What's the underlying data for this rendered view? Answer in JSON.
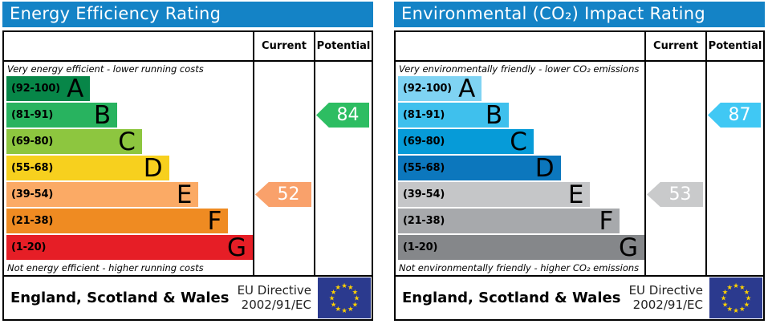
{
  "colors": {
    "header_bg": "#1483c6",
    "table_border": "#000000",
    "flag_blue": "#2b3a8e",
    "flag_star": "#ffd200",
    "arrow_text": "#ffffff"
  },
  "chart_data": [
    {
      "type": "bar",
      "title": "Energy Efficiency Rating",
      "column_headers": [
        "Current",
        "Potential"
      ],
      "top_note": "Very energy efficient - lower running costs",
      "bottom_note": "Not energy efficient - higher running costs",
      "categories": [
        "A",
        "B",
        "C",
        "D",
        "E",
        "F",
        "G"
      ],
      "bands": [
        {
          "grade": "A",
          "range_label": "(92-100)",
          "min": 92,
          "max": 100,
          "width_pct": 34,
          "color": "#078648"
        },
        {
          "grade": "B",
          "range_label": "(81-91)",
          "min": 81,
          "max": 91,
          "width_pct": 45,
          "color": "#28b35f"
        },
        {
          "grade": "C",
          "range_label": "(69-80)",
          "min": 69,
          "max": 80,
          "width_pct": 55,
          "color": "#8dc63f"
        },
        {
          "grade": "D",
          "range_label": "(55-68)",
          "min": 55,
          "max": 68,
          "width_pct": 66,
          "color": "#f7d01e"
        },
        {
          "grade": "E",
          "range_label": "(39-54)",
          "min": 39,
          "max": 54,
          "width_pct": 78,
          "color": "#fbaa65"
        },
        {
          "grade": "F",
          "range_label": "(21-38)",
          "min": 21,
          "max": 38,
          "width_pct": 90,
          "color": "#ef8b22"
        },
        {
          "grade": "G",
          "range_label": "(1-20)",
          "min": 1,
          "max": 20,
          "width_pct": 100,
          "color": "#e61e26"
        }
      ],
      "current": {
        "value": 52,
        "band": "E",
        "color": "#f9a16b"
      },
      "potential": {
        "value": 84,
        "band": "B",
        "color": "#2dbd62"
      },
      "footer_region": "England, Scotland & Wales",
      "footer_directive": [
        "EU Directive",
        "2002/91/EC"
      ]
    },
    {
      "type": "bar",
      "title": "Environmental (CO₂) Impact Rating",
      "column_headers": [
        "Current",
        "Potential"
      ],
      "top_note": "Very environmentally friendly - lower CO₂ emissions",
      "bottom_note": "Not environmentally friendly - higher CO₂ emissions",
      "categories": [
        "A",
        "B",
        "C",
        "D",
        "E",
        "F",
        "G"
      ],
      "bands": [
        {
          "grade": "A",
          "range_label": "(92-100)",
          "min": 92,
          "max": 100,
          "width_pct": 34,
          "color": "#7fd3f3"
        },
        {
          "grade": "B",
          "range_label": "(81-91)",
          "min": 81,
          "max": 91,
          "width_pct": 45,
          "color": "#3fc0ed"
        },
        {
          "grade": "C",
          "range_label": "(69-80)",
          "min": 69,
          "max": 80,
          "width_pct": 55,
          "color": "#069bd8"
        },
        {
          "grade": "D",
          "range_label": "(55-68)",
          "min": 55,
          "max": 68,
          "width_pct": 66,
          "color": "#0c77bd"
        },
        {
          "grade": "E",
          "range_label": "(39-54)",
          "min": 39,
          "max": 54,
          "width_pct": 78,
          "color": "#c5c6c8"
        },
        {
          "grade": "F",
          "range_label": "(21-38)",
          "min": 21,
          "max": 38,
          "width_pct": 90,
          "color": "#a7a9ac"
        },
        {
          "grade": "G",
          "range_label": "(1-20)",
          "min": 1,
          "max": 20,
          "width_pct": 100,
          "color": "#85878a"
        }
      ],
      "current": {
        "value": 53,
        "band": "E",
        "color": "#c9cacb"
      },
      "potential": {
        "value": 87,
        "band": "B",
        "color": "#40c8f4"
      },
      "footer_region": "England, Scotland & Wales",
      "footer_directive": [
        "EU Directive",
        "2002/91/EC"
      ]
    }
  ]
}
